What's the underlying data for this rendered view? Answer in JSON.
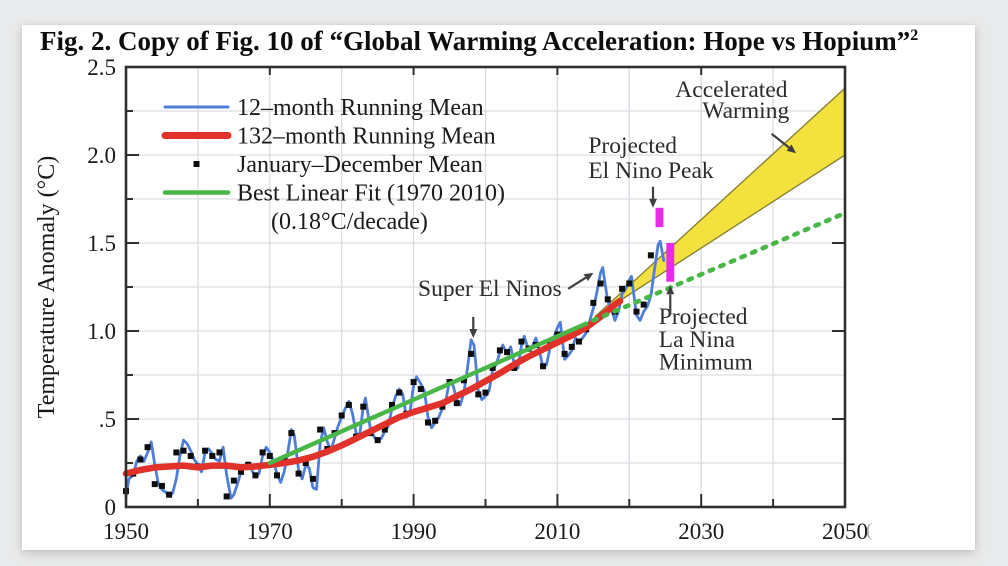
{
  "figure": {
    "title": "Fig. 2. Copy of Fig. 10 of “Global Warming Acceleration: Hope vs Hopium”",
    "title_superscript": "2"
  },
  "chart_data": {
    "type": "line",
    "title": "Fig. 2. Copy of Fig. 10 of “Global Warming Acceleration: Hope vs Hopium”",
    "ylabel": "Temperature Anomaly (°C)",
    "xlabel": "",
    "xlim": [
      1950,
      2050
    ],
    "ylim": [
      0,
      2.5
    ],
    "grid": {
      "x_step_years": 10,
      "y_step_degC": 0.25,
      "color": "#d9dde2"
    },
    "x_ticks": [
      {
        "year": 1950,
        "label": "1950"
      },
      {
        "year": 1970,
        "label": "1970"
      },
      {
        "year": 1990,
        "label": "1990"
      },
      {
        "year": 2010,
        "label": "2010"
      },
      {
        "year": 2030,
        "label": "2030"
      },
      {
        "year": 2050,
        "label": "2050"
      }
    ],
    "x_minor_ticks": [
      1960,
      1980,
      2000,
      2020,
      2040
    ],
    "x_axis_trailing_mark": "(",
    "y_ticks": [
      {
        "t": 0,
        "label": "0"
      },
      {
        "t": 0.5,
        "label": ".5"
      },
      {
        "t": 1.0,
        "label": "1.0"
      },
      {
        "t": 1.5,
        "label": "1.5"
      },
      {
        "t": 2.0,
        "label": "2.0"
      },
      {
        "t": 2.5,
        "label": "2.5"
      }
    ],
    "y_minor_ticks": [
      0.25,
      0.75,
      1.25,
      1.75,
      2.25
    ],
    "legend": {
      "position": "upper-left",
      "items": [
        {
          "label": "12–month Running Mean",
          "color": "#4f7ed8",
          "marker": "line",
          "weight": 3
        },
        {
          "label": "132–month Running Mean",
          "color": "#e0312a",
          "marker": "line",
          "weight": 7
        },
        {
          "label": "January–December Mean",
          "color": "#0d0d0d",
          "marker": "square"
        },
        {
          "label": "Best Linear Fit (1970  2010)",
          "color": "#49b648",
          "marker": "line",
          "weight": 4.5
        }
      ],
      "note": "(0.18°C/decade)"
    },
    "series": {
      "running_mean_12mo": {
        "name": "12–month Running Mean",
        "color": "#4f7ed8",
        "points": [
          [
            1950,
            0.06
          ],
          [
            1950.4,
            0.16
          ],
          [
            1951,
            0.18
          ],
          [
            1951.5,
            0.26
          ],
          [
            1952,
            0.29
          ],
          [
            1952.5,
            0.26
          ],
          [
            1953,
            0.31
          ],
          [
            1953.5,
            0.37
          ],
          [
            1954,
            0.24
          ],
          [
            1954.5,
            0.13
          ],
          [
            1955,
            0.1
          ],
          [
            1955.6,
            0.08
          ],
          [
            1956,
            0.06
          ],
          [
            1956.5,
            0.08
          ],
          [
            1957,
            0.16
          ],
          [
            1957.5,
            0.29
          ],
          [
            1958,
            0.38
          ],
          [
            1958.5,
            0.36
          ],
          [
            1959,
            0.32
          ],
          [
            1959.5,
            0.27
          ],
          [
            1960,
            0.24
          ],
          [
            1960.5,
            0.2
          ],
          [
            1961,
            0.31
          ],
          [
            1961.5,
            0.33
          ],
          [
            1962,
            0.3
          ],
          [
            1962.5,
            0.27
          ],
          [
            1963,
            0.26
          ],
          [
            1963.5,
            0.34
          ],
          [
            1964,
            0.18
          ],
          [
            1964.6,
            0.05
          ],
          [
            1965,
            0.07
          ],
          [
            1965.5,
            0.13
          ],
          [
            1966,
            0.2
          ],
          [
            1966.5,
            0.23
          ],
          [
            1967,
            0.25
          ],
          [
            1967.5,
            0.21
          ],
          [
            1968,
            0.17
          ],
          [
            1968.5,
            0.19
          ],
          [
            1969,
            0.29
          ],
          [
            1969.5,
            0.34
          ],
          [
            1970,
            0.31
          ],
          [
            1970.5,
            0.26
          ],
          [
            1971,
            0.19
          ],
          [
            1971.5,
            0.14
          ],
          [
            1972,
            0.2
          ],
          [
            1972.5,
            0.31
          ],
          [
            1973,
            0.44
          ],
          [
            1973.4,
            0.41
          ],
          [
            1974,
            0.21
          ],
          [
            1974.5,
            0.16
          ],
          [
            1975,
            0.24
          ],
          [
            1975.5,
            0.22
          ],
          [
            1976,
            0.11
          ],
          [
            1976.5,
            0.1
          ],
          [
            1977,
            0.36
          ],
          [
            1977.5,
            0.45
          ],
          [
            1978,
            0.37
          ],
          [
            1978.5,
            0.32
          ],
          [
            1979,
            0.39
          ],
          [
            1979.5,
            0.46
          ],
          [
            1980,
            0.51
          ],
          [
            1980.5,
            0.56
          ],
          [
            1981,
            0.6
          ],
          [
            1981.5,
            0.53
          ],
          [
            1982,
            0.42
          ],
          [
            1982.5,
            0.41
          ],
          [
            1983,
            0.57
          ],
          [
            1983.3,
            0.62
          ],
          [
            1984,
            0.44
          ],
          [
            1984.5,
            0.4
          ],
          [
            1985,
            0.37
          ],
          [
            1985.5,
            0.39
          ],
          [
            1986,
            0.43
          ],
          [
            1986.5,
            0.46
          ],
          [
            1987,
            0.56
          ],
          [
            1987.5,
            0.63
          ],
          [
            1988,
            0.67
          ],
          [
            1988.5,
            0.64
          ],
          [
            1989,
            0.51
          ],
          [
            1989.5,
            0.54
          ],
          [
            1990,
            0.69
          ],
          [
            1990.4,
            0.74
          ],
          [
            1991,
            0.7
          ],
          [
            1991.5,
            0.66
          ],
          [
            1992,
            0.51
          ],
          [
            1992.5,
            0.45
          ],
          [
            1993,
            0.48
          ],
          [
            1993.5,
            0.51
          ],
          [
            1994,
            0.56
          ],
          [
            1994.5,
            0.61
          ],
          [
            1995,
            0.72
          ],
          [
            1995.5,
            0.69
          ],
          [
            1996,
            0.61
          ],
          [
            1996.5,
            0.58
          ],
          [
            1997,
            0.65
          ],
          [
            1997.5,
            0.79
          ],
          [
            1998,
            0.95
          ],
          [
            1998.4,
            0.92
          ],
          [
            1999,
            0.66
          ],
          [
            1999.5,
            0.61
          ],
          [
            2000,
            0.63
          ],
          [
            2000.5,
            0.66
          ],
          [
            2001,
            0.78
          ],
          [
            2001.5,
            0.81
          ],
          [
            2002,
            0.88
          ],
          [
            2002.4,
            0.92
          ],
          [
            2003,
            0.87
          ],
          [
            2003.5,
            0.91
          ],
          [
            2004,
            0.81
          ],
          [
            2004.5,
            0.79
          ],
          [
            2005,
            0.92
          ],
          [
            2005.4,
            0.97
          ],
          [
            2006,
            0.89
          ],
          [
            2006.5,
            0.91
          ],
          [
            2007,
            0.96
          ],
          [
            2007.5,
            0.89
          ],
          [
            2008,
            0.79
          ],
          [
            2008.5,
            0.81
          ],
          [
            2009,
            0.91
          ],
          [
            2009.5,
            0.96
          ],
          [
            2010,
            1.02
          ],
          [
            2010.4,
            1.05
          ],
          [
            2011,
            0.84
          ],
          [
            2011.5,
            0.86
          ],
          [
            2012,
            0.89
          ],
          [
            2012.5,
            0.96
          ],
          [
            2013,
            0.94
          ],
          [
            2013.5,
            0.96
          ],
          [
            2014,
            0.99
          ],
          [
            2014.5,
            1.06
          ],
          [
            2015,
            1.13
          ],
          [
            2015.5,
            1.22
          ],
          [
            2016,
            1.33
          ],
          [
            2016.3,
            1.36
          ],
          [
            2017,
            1.17
          ],
          [
            2017.5,
            1.13
          ],
          [
            2018,
            1.06
          ],
          [
            2018.5,
            1.11
          ],
          [
            2019,
            1.21
          ],
          [
            2019.5,
            1.24
          ],
          [
            2020,
            1.29
          ],
          [
            2020.3,
            1.31
          ],
          [
            2021,
            1.09
          ],
          [
            2021.5,
            1.06
          ],
          [
            2022,
            1.11
          ],
          [
            2022.5,
            1.14
          ],
          [
            2023,
            1.2
          ],
          [
            2023.5,
            1.35
          ],
          [
            2024,
            1.49
          ],
          [
            2024.3,
            1.51
          ],
          [
            2024.8,
            1.4
          ]
        ]
      },
      "running_mean_132mo": {
        "name": "132–month Running Mean",
        "color": "#e0312a",
        "points": [
          [
            1950,
            0.19
          ],
          [
            1952,
            0.21
          ],
          [
            1954,
            0.225
          ],
          [
            1956,
            0.23
          ],
          [
            1958,
            0.235
          ],
          [
            1960,
            0.225
          ],
          [
            1962,
            0.235
          ],
          [
            1964,
            0.235
          ],
          [
            1966,
            0.225
          ],
          [
            1968,
            0.23
          ],
          [
            1970,
            0.24
          ],
          [
            1972,
            0.25
          ],
          [
            1974,
            0.265
          ],
          [
            1976,
            0.285
          ],
          [
            1978,
            0.315
          ],
          [
            1980,
            0.35
          ],
          [
            1982,
            0.39
          ],
          [
            1984,
            0.43
          ],
          [
            1986,
            0.47
          ],
          [
            1988,
            0.51
          ],
          [
            1990,
            0.54
          ],
          [
            1992,
            0.565
          ],
          [
            1994,
            0.59
          ],
          [
            1996,
            0.63
          ],
          [
            1998,
            0.67
          ],
          [
            2000,
            0.715
          ],
          [
            2002,
            0.76
          ],
          [
            2004,
            0.81
          ],
          [
            2006,
            0.855
          ],
          [
            2008,
            0.895
          ],
          [
            2010,
            0.935
          ],
          [
            2012,
            0.975
          ],
          [
            2014,
            1.02
          ],
          [
            2016,
            1.08
          ],
          [
            2018,
            1.15
          ],
          [
            2018.7,
            1.17
          ]
        ]
      },
      "annual_mean": {
        "name": "January–December Mean",
        "color": "#0d0d0d",
        "years_start": 1950,
        "values": [
          0.09,
          0.19,
          0.27,
          0.34,
          0.13,
          0.12,
          0.07,
          0.31,
          0.32,
          0.29,
          0.23,
          0.32,
          0.29,
          0.31,
          0.06,
          0.15,
          0.2,
          0.24,
          0.18,
          0.31,
          0.29,
          0.18,
          0.27,
          0.42,
          0.19,
          0.25,
          0.16,
          0.44,
          0.33,
          0.42,
          0.52,
          0.58,
          0.4,
          0.57,
          0.42,
          0.38,
          0.44,
          0.58,
          0.65,
          0.53,
          0.71,
          0.67,
          0.48,
          0.49,
          0.57,
          0.71,
          0.59,
          0.72,
          0.87,
          0.64,
          0.65,
          0.79,
          0.89,
          0.88,
          0.79,
          0.94,
          0.9,
          0.92,
          0.8,
          0.92,
          0.98,
          0.87,
          0.91,
          0.94,
          1.01,
          1.16,
          1.27,
          1.18,
          1.11,
          1.24,
          1.27,
          1.11,
          1.15,
          1.43
        ]
      },
      "best_linear_fit": {
        "name": "Best Linear Fit (1970  2010)",
        "rate_label": "(0.18°C/decade)",
        "color": "#49b648",
        "solid": [
          [
            1970,
            0.25
          ],
          [
            2014,
            1.042
          ]
        ],
        "dotted_projection": [
          [
            2015,
            1.06
          ],
          [
            2050,
            1.67
          ]
        ]
      }
    },
    "projection_wedge": {
      "label": "Accelerated Warming",
      "fill": "#f3e13e",
      "edge": "#8b8236",
      "points": [
        [
          2015.2,
          1.08
        ],
        [
          2050,
          2.38
        ],
        [
          2050,
          2.0
        ]
      ]
    },
    "projection_bars": [
      {
        "id": "el-nino",
        "label": "Projected El Nino Peak",
        "color": "#e82be8",
        "x": 2024.2,
        "width_years": 1.1,
        "t0": 1.59,
        "t1": 1.7
      },
      {
        "id": "la-nina",
        "label": "Projected La Nina Minimum",
        "color": "#e82be8",
        "x": 2025.7,
        "width_years": 1.1,
        "t0": 1.28,
        "t1": 1.5
      }
    ],
    "annotations": [
      {
        "id": "accelerated-warming",
        "anchor": "middle",
        "lines": [
          {
            "text": "Accelerated",
            "x": 2034.2,
            "t": 2.33
          },
          {
            "text": "Warming",
            "x": 2036.2,
            "t": 2.21
          }
        ],
        "arrows": [
          {
            "from": [
              2039.8,
              2.12
            ],
            "to": [
              2043.2,
              2.01
            ]
          }
        ]
      },
      {
        "id": "projected-el-nino-peak",
        "anchor": "start",
        "lines": [
          {
            "text": "Projected",
            "x": 2014.3,
            "t": 2.01
          },
          {
            "text": "El Nino Peak",
            "x": 2014.3,
            "t": 1.87
          }
        ],
        "arrows": [
          {
            "from": [
              2023.3,
              1.82
            ],
            "to": [
              2023.3,
              1.7
            ]
          }
        ]
      },
      {
        "id": "super-el-ninos",
        "anchor": "middle",
        "lines": [
          {
            "text": "Super El Ninos",
            "x": 2000.6,
            "t": 1.2
          }
        ],
        "arrows": [
          {
            "from": [
              1998.3,
              1.08
            ],
            "to": [
              1998.3,
              0.96
            ]
          },
          {
            "from": [
              2011.5,
              1.24
            ],
            "to": [
              2015.0,
              1.33
            ]
          }
        ]
      },
      {
        "id": "projected-la-nina-minimum",
        "anchor": "start",
        "lines": [
          {
            "text": "Projected",
            "x": 2024.1,
            "t": 1.04
          },
          {
            "text": "La Nina",
            "x": 2024.1,
            "t": 0.91
          },
          {
            "text": "Minimum",
            "x": 2024.1,
            "t": 0.78
          }
        ],
        "arrows": [
          {
            "from": [
              2025.7,
              1.09
            ],
            "to": [
              2025.7,
              1.26
            ]
          }
        ]
      }
    ],
    "colors": {
      "spine": "#2f2f2f",
      "tick_text": "#1a1a1a",
      "annotation_text": "#2b2b2b",
      "grid": "#d9dde2"
    }
  }
}
